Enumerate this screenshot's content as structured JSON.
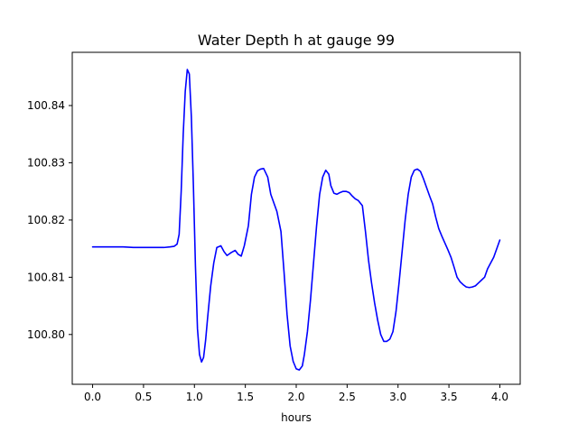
{
  "chart_data": {
    "type": "line",
    "title": "Water Depth h at gauge 99",
    "xlabel": "hours",
    "ylabel": "",
    "xlim": [
      -0.2,
      4.2
    ],
    "ylim": [
      100.7913,
      100.8493
    ],
    "x_ticks": [
      0.0,
      0.5,
      1.0,
      1.5,
      2.0,
      2.5,
      3.0,
      3.5,
      4.0
    ],
    "x_tick_labels": [
      "0.0",
      "0.5",
      "1.0",
      "1.5",
      "2.0",
      "2.5",
      "3.0",
      "3.5",
      "4.0"
    ],
    "y_ticks": [
      100.8,
      100.81,
      100.82,
      100.83,
      100.84
    ],
    "y_tick_labels": [
      "100.80",
      "100.81",
      "100.82",
      "100.83",
      "100.84"
    ],
    "grid": false,
    "legend": "none",
    "series": [
      {
        "color": "#0000ff",
        "x": [
          0.0,
          0.1,
          0.2,
          0.3,
          0.4,
          0.5,
          0.6,
          0.7,
          0.76,
          0.8,
          0.83,
          0.85,
          0.87,
          0.89,
          0.91,
          0.93,
          0.95,
          0.97,
          0.99,
          1.01,
          1.03,
          1.05,
          1.07,
          1.09,
          1.11,
          1.13,
          1.16,
          1.19,
          1.22,
          1.26,
          1.29,
          1.32,
          1.36,
          1.4,
          1.43,
          1.46,
          1.49,
          1.53,
          1.56,
          1.59,
          1.62,
          1.65,
          1.68,
          1.72,
          1.75,
          1.78,
          1.81,
          1.85,
          1.88,
          1.91,
          1.94,
          1.97,
          2.0,
          2.03,
          2.06,
          2.08,
          2.11,
          2.14,
          2.17,
          2.2,
          2.23,
          2.26,
          2.29,
          2.32,
          2.34,
          2.37,
          2.4,
          2.43,
          2.46,
          2.49,
          2.52,
          2.55,
          2.58,
          2.61,
          2.65,
          2.68,
          2.71,
          2.74,
          2.77,
          2.8,
          2.83,
          2.86,
          2.89,
          2.92,
          2.95,
          2.98,
          3.01,
          3.04,
          3.07,
          3.1,
          3.13,
          3.16,
          3.19,
          3.22,
          3.25,
          3.28,
          3.31,
          3.34,
          3.37,
          3.4,
          3.43,
          3.46,
          3.49,
          3.52,
          3.55,
          3.58,
          3.61,
          3.64,
          3.67,
          3.7,
          3.73,
          3.76,
          3.79,
          3.82,
          3.85,
          3.88,
          3.91,
          3.94,
          3.97,
          4.0
        ],
        "y": [
          100.8153,
          100.8153,
          100.8153,
          100.8153,
          100.8152,
          100.8152,
          100.8152,
          100.8152,
          100.8153,
          100.8154,
          100.8158,
          100.8175,
          100.825,
          100.835,
          100.8425,
          100.8463,
          100.8455,
          100.838,
          100.826,
          100.812,
          100.801,
          100.7965,
          100.7952,
          100.796,
          100.799,
          100.803,
          100.8085,
          100.8125,
          100.8152,
          100.8155,
          100.8145,
          100.8138,
          100.8143,
          100.8147,
          100.814,
          100.8137,
          100.8155,
          100.819,
          100.8245,
          100.8275,
          100.8286,
          100.8289,
          100.829,
          100.8275,
          100.8245,
          100.823,
          100.8215,
          100.818,
          100.811,
          100.8035,
          100.798,
          100.7953,
          100.794,
          100.7938,
          100.7945,
          100.7965,
          100.8005,
          100.806,
          100.8125,
          100.819,
          100.8245,
          100.8275,
          100.8287,
          100.828,
          100.826,
          100.8247,
          100.8245,
          100.8248,
          100.825,
          100.825,
          100.8248,
          100.8242,
          100.8237,
          100.8234,
          100.8225,
          100.818,
          100.813,
          100.809,
          100.8055,
          100.8025,
          100.8,
          100.7988,
          100.7988,
          100.7992,
          100.8005,
          100.804,
          100.809,
          100.8145,
          100.82,
          100.8245,
          100.8275,
          100.8287,
          100.8289,
          100.8285,
          100.8272,
          100.8257,
          100.8242,
          100.8228,
          100.8205,
          100.8185,
          100.8172,
          100.816,
          100.8148,
          100.8135,
          100.8118,
          100.81,
          100.8092,
          100.8087,
          100.8083,
          100.8082,
          100.8083,
          100.8085,
          100.809,
          100.8095,
          100.81,
          100.8115,
          100.8125,
          100.8135,
          100.815,
          100.8165
        ]
      }
    ]
  }
}
